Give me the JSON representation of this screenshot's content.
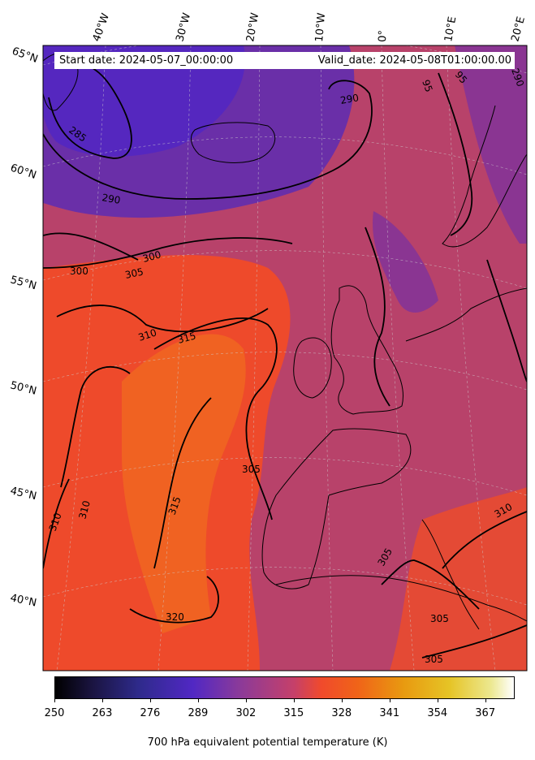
{
  "header": {
    "start_date": "Start date: 2024-05-07_00:00:00",
    "valid_date": "Valid_date: 2024-05-08T01:00:00.00"
  },
  "map": {
    "field": "700 hPa equivalent potential temperature",
    "projection": "lambert-conformal",
    "lon_labels": [
      "40°W",
      "30°W",
      "20°W",
      "10°W",
      "0°",
      "10°E",
      "20°E"
    ],
    "lat_labels": [
      "65°N",
      "60°N",
      "55°N",
      "50°N",
      "45°N",
      "40°N"
    ],
    "contour_levels": [
      "285",
      "290",
      "290",
      "300",
      "305",
      "300",
      "310",
      "315",
      "315",
      "310",
      "310",
      "305",
      "320",
      "310",
      "305",
      "305",
      "305",
      "95",
      "95",
      "290"
    ],
    "colors": {
      "cold": "#5a2bb5",
      "mid": "#b8406a",
      "warm": "#f04a2a",
      "hot": "#f26a18"
    }
  },
  "colorbar": {
    "label": "700 hPa equivalent potential temperature (K)",
    "ticks": [
      "250",
      "263",
      "276",
      "289",
      "302",
      "315",
      "328",
      "341",
      "354",
      "367"
    ],
    "min": 250,
    "max": 375
  }
}
